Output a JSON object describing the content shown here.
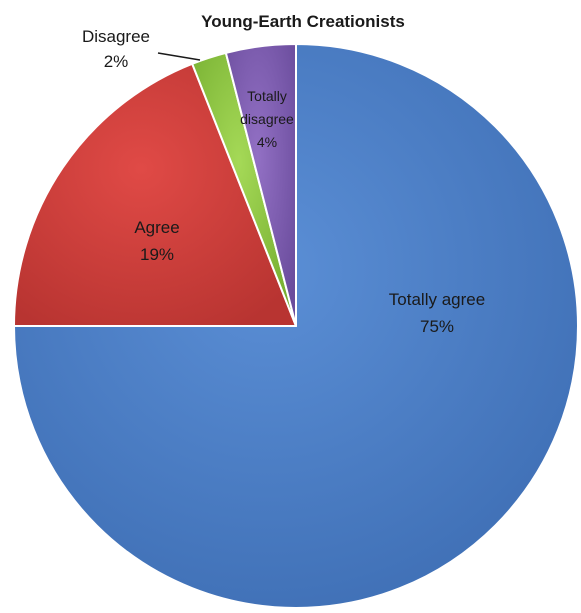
{
  "chart_data": {
    "type": "pie",
    "title": "Young-Earth Creationists",
    "slices": [
      {
        "label": "Totally agree",
        "value": 75,
        "percent_text": "75%",
        "color": "#4a7ec6"
      },
      {
        "label": "Agree",
        "value": 19,
        "percent_text": "19%",
        "color": "#d23f3c"
      },
      {
        "label": "Disagree",
        "value": 2,
        "percent_text": "2%",
        "color": "#8bc63f"
      },
      {
        "label": "Totally disagree",
        "value": 4,
        "percent_text": "4%",
        "color": "#7d5bb0"
      }
    ],
    "start_angle": "12 o'clock",
    "direction": "clockwise",
    "legend": "none",
    "style": "3d-beveled"
  }
}
